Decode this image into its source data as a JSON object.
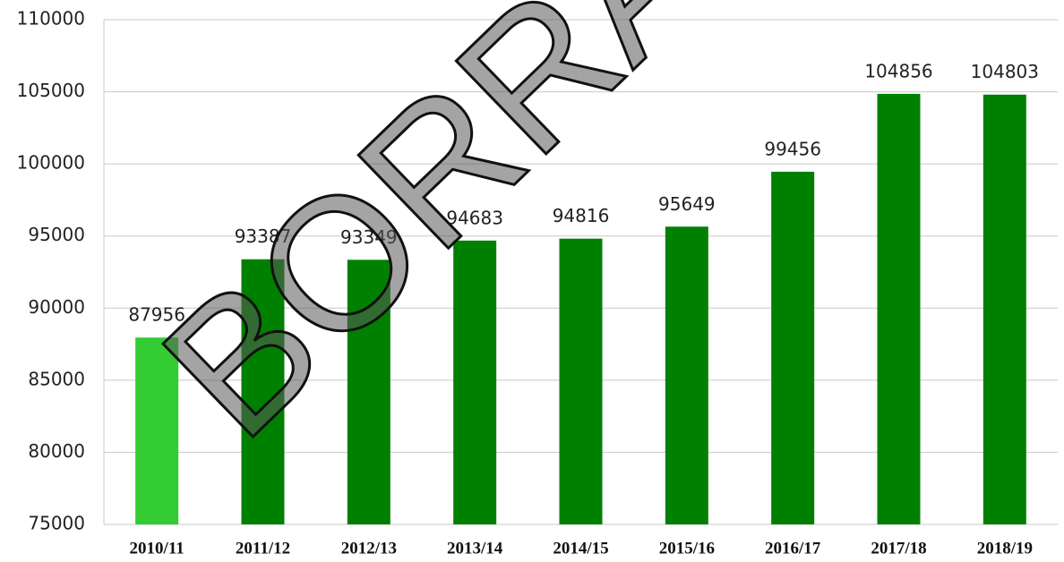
{
  "chart_data": {
    "type": "bar",
    "categories": [
      "2010/11",
      "2011/12",
      "2012/13",
      "2013/14",
      "2014/15",
      "2015/16",
      "2016/17",
      "2017/18",
      "2018/19"
    ],
    "values": [
      87956,
      93387,
      93349,
      94683,
      94816,
      95649,
      99456,
      104856,
      104803
    ],
    "colors": [
      "#33cc33",
      "#008000",
      "#008000",
      "#008000",
      "#008000",
      "#008000",
      "#008000",
      "#008000",
      "#008000"
    ],
    "ylim": [
      75000,
      110000
    ],
    "yticks": [
      75000,
      80000,
      85000,
      90000,
      95000,
      100000,
      105000,
      110000
    ],
    "grid": true,
    "watermark": "BORRAD"
  }
}
